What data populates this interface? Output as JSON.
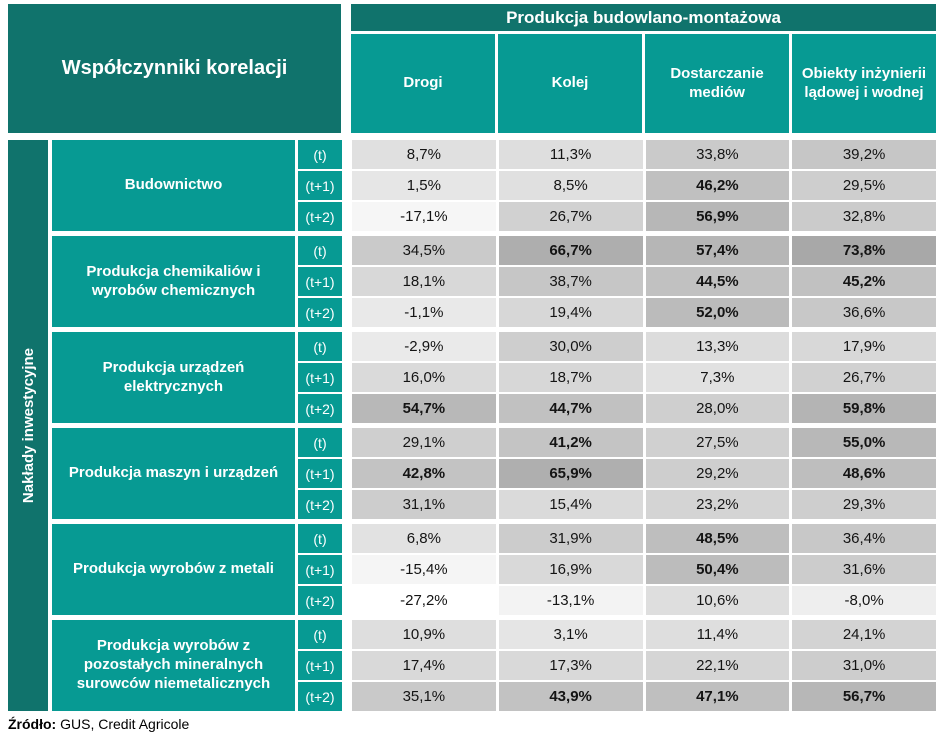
{
  "chart_data": {
    "type": "table",
    "corner_title": "Współczynniki korelacji",
    "column_group_title": "Produkcja budowlano-montażowa",
    "row_group_title": "Nakłady inwestycyjne",
    "columns": [
      "Drogi",
      "Kolej",
      "Dostarczanie mediów",
      "Obiekty inżynierii lądowej i wodnej"
    ],
    "lags": [
      "(t)",
      "(t+1)",
      "(t+2)"
    ],
    "groups": [
      {
        "label": "Budownictwo",
        "values": [
          [
            8.7,
            11.3,
            33.8,
            39.2
          ],
          [
            1.5,
            8.5,
            46.2,
            29.5
          ],
          [
            -17.1,
            26.7,
            56.9,
            32.8
          ]
        ]
      },
      {
        "label": "Produkcja chemikaliów i wyrobów chemicznych",
        "values": [
          [
            34.5,
            66.7,
            57.4,
            73.8
          ],
          [
            18.1,
            38.7,
            44.5,
            45.2
          ],
          [
            -1.1,
            19.4,
            52.0,
            36.6
          ]
        ]
      },
      {
        "label": "Produkcja urządzeń elektrycznych",
        "values": [
          [
            -2.9,
            30.0,
            13.3,
            17.9
          ],
          [
            16.0,
            18.7,
            7.3,
            26.7
          ],
          [
            54.7,
            44.7,
            28.0,
            59.8
          ]
        ]
      },
      {
        "label": "Produkcja maszyn i urządzeń",
        "values": [
          [
            29.1,
            41.2,
            27.5,
            55.0
          ],
          [
            42.8,
            65.9,
            29.2,
            48.6
          ],
          [
            31.1,
            15.4,
            23.2,
            29.3
          ]
        ]
      },
      {
        "label": "Produkcja wyrobów z metali",
        "values": [
          [
            6.8,
            31.9,
            48.5,
            36.4
          ],
          [
            -15.4,
            16.9,
            50.4,
            31.6
          ],
          [
            -27.2,
            -13.1,
            10.6,
            -8.0
          ]
        ]
      },
      {
        "label": "Produkcja wyrobów z pozostałych mineralnych surowców niemetalicznych",
        "values": [
          [
            10.9,
            3.1,
            11.4,
            24.1
          ],
          [
            17.4,
            17.3,
            22.1,
            31.0
          ],
          [
            35.1,
            43.9,
            47.1,
            56.7
          ]
        ]
      }
    ],
    "value_format": "percent-comma-1dp",
    "heat_scale": {
      "min": -27.2,
      "max": 73.8,
      "min_color": "#ffffff",
      "max_color": "#a8a8a8"
    },
    "bold_threshold": 40
  },
  "colors": {
    "dark_teal": "#10736c",
    "light_teal": "#079a93"
  },
  "footer": {
    "source_label": "Źródło:",
    "source_text": "GUS, Credit Agricole"
  }
}
